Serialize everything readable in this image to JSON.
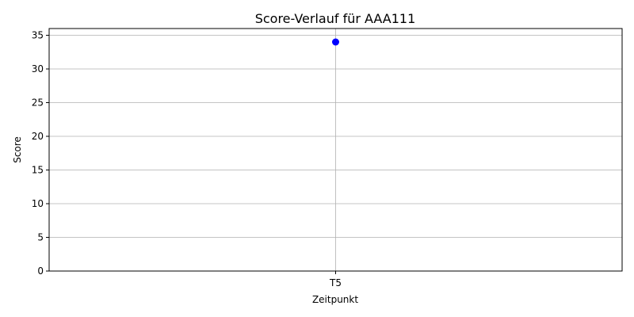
{
  "chart_data": {
    "type": "line",
    "title": "Score-Verlauf für AAA111",
    "xlabel": "Zeitpunkt",
    "ylabel": "Score",
    "categories": [
      "T5"
    ],
    "series": [
      {
        "values": [
          34
        ],
        "color": "#0000ff",
        "marker": "circle"
      }
    ],
    "ylim": [
      0,
      36
    ],
    "yticks": [
      0,
      5,
      10,
      15,
      20,
      25,
      30,
      35
    ],
    "grid": true,
    "legend": "none"
  }
}
